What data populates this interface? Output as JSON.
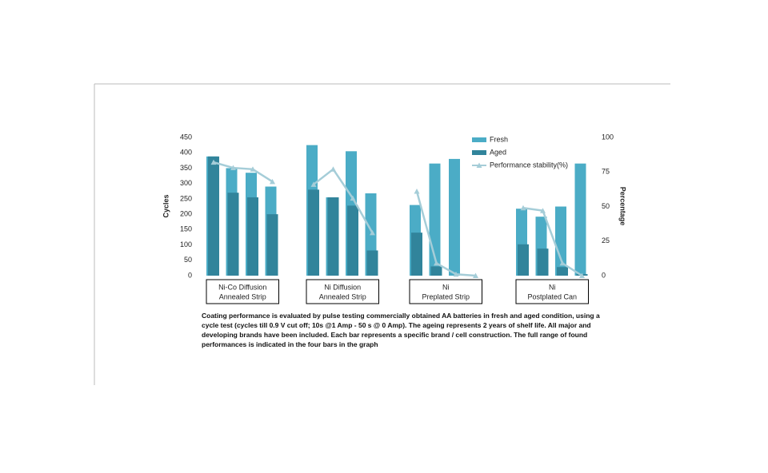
{
  "chart_data": {
    "type": "bar",
    "y_label": "Cycles",
    "y2_label": "Percentage",
    "categories": [
      null,
      null,
      null,
      null,
      null,
      null,
      null,
      null,
      null,
      null,
      null,
      null,
      null,
      null,
      null,
      null
    ],
    "groups": [
      [
        "Ni-Co Diffusion",
        "Annealed Strip"
      ],
      [
        "Ni Diffusion",
        "Annealed Strip"
      ],
      [
        "Ni",
        "Preplated Strip"
      ],
      [
        "Ni",
        "Postplated Can"
      ]
    ],
    "series": [
      {
        "name": "Fresh",
        "color": "#4bacc6",
        "values": [
          388,
          350,
          335,
          290,
          425,
          255,
          405,
          268,
          230,
          365,
          380,
          null,
          218,
          192,
          225,
          365
        ]
      },
      {
        "name": "Aged",
        "color": "#31849b",
        "values": [
          388,
          270,
          255,
          200,
          280,
          255,
          228,
          82,
          140,
          30,
          null,
          null,
          102,
          88,
          28,
          5
        ]
      },
      {
        "name": "Performance stability(%)",
        "color": "#a5cdd8",
        "axis": "y2",
        "values": [
          82,
          78,
          77,
          68,
          66,
          77,
          56,
          31,
          61,
          9,
          1,
          0,
          49,
          47,
          9,
          0
        ]
      }
    ],
    "ylim": [
      0,
      450
    ],
    "yticks": [
      0,
      50,
      100,
      150,
      200,
      250,
      300,
      350,
      400,
      450
    ],
    "y2lim": [
      0,
      100
    ],
    "y2ticks": [
      0,
      25,
      50,
      75,
      100
    ],
    "caption": "Coating performance is evaluated by pulse testing commercially obtained AA batteries in fresh and aged condition, using a cycle test (cycles till 0.9 V cut off;  10s @1 Amp - 50 s @ 0 Amp). The ageing represents 2 years of shelf life.  All major and developing brands have been included. Each bar represents a specific brand / cell construction. The full range of found performances is indicated in the four bars in the graph"
  }
}
